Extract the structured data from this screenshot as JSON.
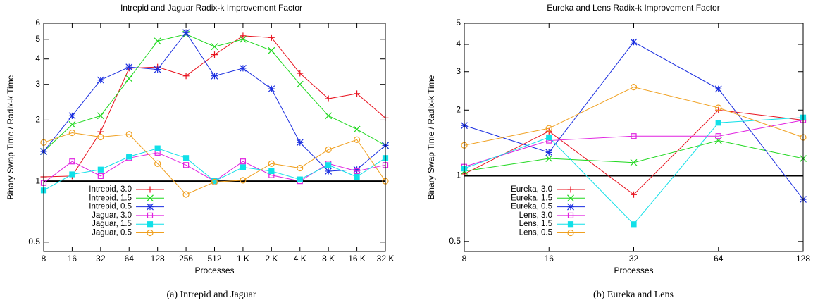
{
  "chart_data": [
    {
      "type": "line",
      "title": "Intrepid and Jaguar Radix-k Improvement Factor",
      "caption": "(a) Intrepid and Jaguar",
      "x_label": "Processes",
      "y_label": "Binary Swap Time / Radix-k Time",
      "categories": [
        "8",
        "16",
        "32",
        "64",
        "128",
        "256",
        "512",
        "1 K",
        "2 K",
        "4 K",
        "8 K",
        "16 K",
        "32 K"
      ],
      "y_scale": "log",
      "ylim": [
        0.45,
        6
      ],
      "yticks": [
        0.5,
        1,
        2,
        3,
        4,
        5,
        6
      ],
      "reference_line": 1,
      "series": [
        {
          "name": "Intrepid, 3.0",
          "color": "#e8121e",
          "marker": "plus",
          "values": [
            1.05,
            1.06,
            1.75,
            3.6,
            3.65,
            3.3,
            4.2,
            5.2,
            5.1,
            3.4,
            2.55,
            2.7,
            2.05
          ]
        },
        {
          "name": "Intrepid, 1.5",
          "color": "#1ed81e",
          "marker": "cross",
          "values": [
            1.4,
            1.9,
            2.1,
            3.2,
            4.9,
            5.3,
            4.6,
            5.0,
            4.4,
            3.0,
            2.1,
            1.8,
            1.5
          ]
        },
        {
          "name": "Intrepid, 0.5",
          "color": "#1a2ee0",
          "marker": "star",
          "values": [
            1.4,
            2.1,
            3.15,
            3.65,
            3.55,
            5.4,
            3.3,
            3.6,
            2.85,
            1.55,
            1.12,
            1.14,
            1.5
          ]
        },
        {
          "name": "Jaguar, 3.0",
          "color": "#e020e0",
          "marker": "square",
          "values": [
            0.98,
            1.25,
            1.06,
            1.3,
            1.38,
            1.2,
            1.0,
            1.25,
            1.07,
            1.0,
            1.22,
            1.12,
            1.2
          ]
        },
        {
          "name": "Jaguar, 1.5",
          "color": "#10e0e8",
          "marker": "filled-square",
          "values": [
            0.9,
            1.08,
            1.14,
            1.32,
            1.45,
            1.3,
            1.0,
            1.17,
            1.12,
            1.02,
            1.2,
            1.05,
            1.3
          ]
        },
        {
          "name": "Jaguar, 0.5",
          "color": "#f0a020",
          "marker": "circle",
          "values": [
            1.55,
            1.73,
            1.65,
            1.7,
            1.22,
            0.86,
            0.99,
            1.01,
            1.22,
            1.16,
            1.43,
            1.6,
            1.0
          ]
        }
      ]
    },
    {
      "type": "line",
      "title": "Eureka and Lens Radix-k Improvement Factor",
      "caption": "(b) Eureka and Lens",
      "x_label": "Processes",
      "y_label": "Binary Swap Time / Radix-k Time",
      "categories": [
        "8",
        "16",
        "32",
        "64",
        "128"
      ],
      "y_scale": "log",
      "ylim": [
        0.45,
        5
      ],
      "yticks": [
        0.5,
        1,
        2,
        3,
        4,
        5
      ],
      "reference_line": 1,
      "series": [
        {
          "name": "Eureka, 3.0",
          "color": "#e8121e",
          "marker": "plus",
          "values": [
            1.02,
            1.6,
            0.82,
            2.0,
            1.8
          ]
        },
        {
          "name": "Eureka, 1.5",
          "color": "#1ed81e",
          "marker": "cross",
          "values": [
            1.05,
            1.2,
            1.15,
            1.45,
            1.2
          ]
        },
        {
          "name": "Eureka, 0.5",
          "color": "#1a2ee0",
          "marker": "star",
          "values": [
            1.7,
            1.28,
            4.1,
            2.5,
            0.78
          ]
        },
        {
          "name": "Lens, 3.0",
          "color": "#e020e0",
          "marker": "square",
          "values": [
            1.1,
            1.45,
            1.52,
            1.52,
            1.8
          ]
        },
        {
          "name": "Lens, 1.5",
          "color": "#10e0e8",
          "marker": "filled-square",
          "values": [
            1.08,
            1.5,
            0.6,
            1.75,
            1.85
          ]
        },
        {
          "name": "Lens, 0.5",
          "color": "#f0a020",
          "marker": "circle",
          "values": [
            1.38,
            1.65,
            2.55,
            2.05,
            1.5
          ]
        }
      ]
    }
  ]
}
